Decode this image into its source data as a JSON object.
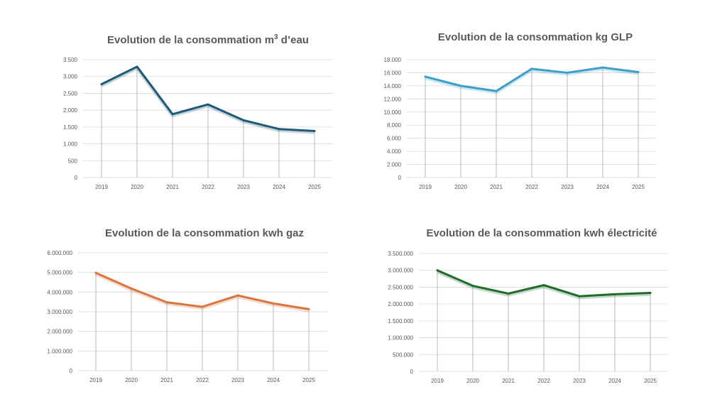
{
  "chart_data": [
    {
      "type": "line",
      "title_main": "Evolution de la consommation m",
      "title_sup": "3",
      "title_tail": " d’eau",
      "title": "Evolution de la consommation m3 d’eau",
      "categories": [
        "2019",
        "2020",
        "2021",
        "2022",
        "2023",
        "2024",
        "2025"
      ],
      "series": [
        {
          "name": "m3 d'eau",
          "values": [
            2770,
            3290,
            1880,
            2170,
            1700,
            1440,
            1380
          ],
          "color": "#1f5a78"
        }
      ],
      "yticks": [
        0,
        500,
        1000,
        1500,
        2000,
        2500,
        3000,
        3500
      ],
      "ytick_labels": [
        "0",
        "500",
        "1.000",
        "1.500",
        "2.000",
        "2.500",
        "3.000",
        "3.500"
      ],
      "ylim": [
        0,
        3500
      ],
      "xlabel": "",
      "ylabel": "",
      "grid": true,
      "drop_lines": true,
      "legend": "none"
    },
    {
      "type": "line",
      "title_main": "Evolution de la consommation kg GLP",
      "title_sup": "",
      "title_tail": "",
      "title": "Evolution de la consommation kg GLP",
      "categories": [
        "2019",
        "2020",
        "2021",
        "2022",
        "2023",
        "2024",
        "2025"
      ],
      "series": [
        {
          "name": "kg GLP",
          "values": [
            15400,
            14000,
            13200,
            16600,
            16000,
            16800,
            16100
          ],
          "color": "#3a9fc9"
        }
      ],
      "yticks": [
        0,
        2000,
        4000,
        6000,
        8000,
        10000,
        12000,
        14000,
        16000,
        18000
      ],
      "ytick_labels": [
        "0",
        "2.000",
        "4.000",
        "6.000",
        "8.000",
        "10.000",
        "12.000",
        "14.000",
        "16.000",
        "18.000"
      ],
      "ylim": [
        0,
        18000
      ],
      "xlabel": "",
      "ylabel": "",
      "grid": true,
      "drop_lines": true,
      "legend": "none"
    },
    {
      "type": "line",
      "title_main": "Evolution de la consommation kwh gaz",
      "title_sup": "",
      "title_tail": "",
      "title": "Evolution de la consommation kwh gaz",
      "categories": [
        "2019",
        "2020",
        "2021",
        "2022",
        "2023",
        "2024",
        "2025"
      ],
      "series": [
        {
          "name": "kwh gaz",
          "values": [
            4980000,
            4180000,
            3480000,
            3250000,
            3830000,
            3420000,
            3130000
          ],
          "color": "#d9753f"
        }
      ],
      "yticks": [
        0,
        1000000,
        2000000,
        3000000,
        4000000,
        5000000,
        6000000
      ],
      "ytick_labels": [
        "0",
        "1.000.000",
        "2.000.000",
        "3.000.000",
        "4.000.000",
        "5.000.000",
        "6.000.000"
      ],
      "ylim": [
        0,
        6000000
      ],
      "xlabel": "",
      "ylabel": "",
      "grid": true,
      "drop_lines": true,
      "legend": "none"
    },
    {
      "type": "line",
      "title_main": "Evolution de la consommation kwh électricité",
      "title_sup": "",
      "title_tail": "",
      "title": "Evolution de la consommation kwh électricité",
      "categories": [
        "2019",
        "2020",
        "2021",
        "2022",
        "2023",
        "2024",
        "2025"
      ],
      "series": [
        {
          "name": "kwh électricité",
          "values": [
            3000000,
            2540000,
            2310000,
            2560000,
            2230000,
            2290000,
            2330000
          ],
          "color": "#1e6b2c"
        }
      ],
      "yticks": [
        0,
        500000,
        1000000,
        1500000,
        2000000,
        2500000,
        3000000,
        3500000
      ],
      "ytick_labels": [
        "0",
        "500.000",
        "1.000.000",
        "1.500.000",
        "2.000.000",
        "2.500.000",
        "3.000.000",
        "3.500.000"
      ],
      "ylim": [
        0,
        3500000
      ],
      "xlabel": "",
      "ylabel": "",
      "grid": true,
      "drop_lines": true,
      "legend": "none"
    }
  ]
}
